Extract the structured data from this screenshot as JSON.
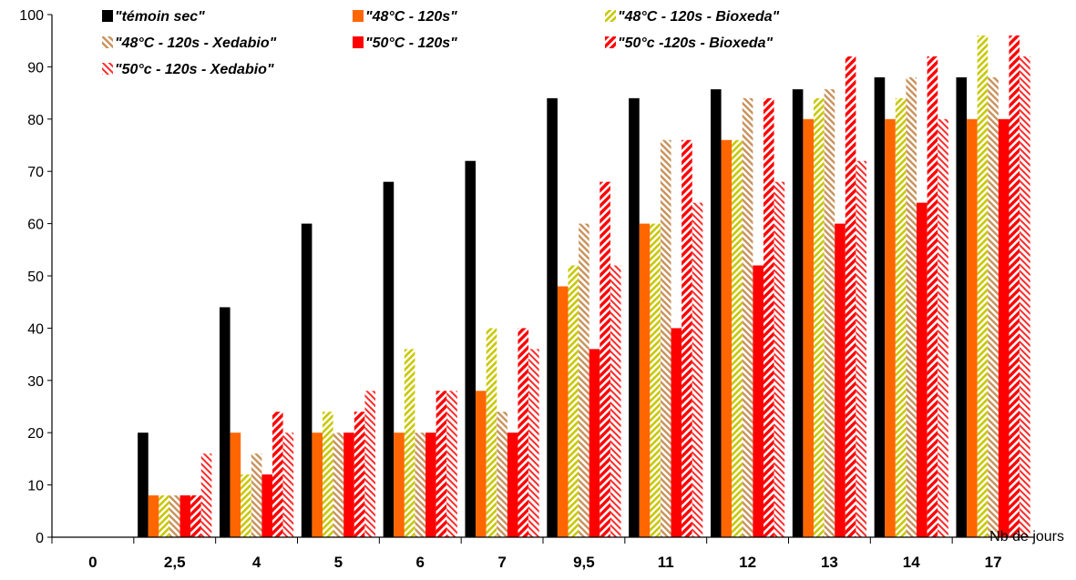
{
  "chart_data": {
    "type": "bar",
    "xlabel": "Nb de jours",
    "ylim": [
      0,
      100
    ],
    "ytick_step": 10,
    "grid": false,
    "legend_position": "top",
    "categories": [
      "0",
      "2,5",
      "4",
      "5",
      "6",
      "7",
      "9,5",
      "11",
      "12",
      "13",
      "14",
      "17"
    ],
    "series": [
      {
        "name": "\"témoin sec\"",
        "color": "#000000",
        "pattern": "solid",
        "values": [
          0,
          20,
          44,
          60,
          68,
          72,
          84,
          84,
          85.7,
          85.7,
          88,
          88
        ]
      },
      {
        "name": "\"48°C - 120s\"",
        "color": "#ff6600",
        "pattern": "solid",
        "values": [
          0,
          8,
          20,
          20,
          20,
          28,
          48,
          60,
          76,
          80,
          80,
          80
        ]
      },
      {
        "name": "\"48°C - 120s - Bioxeda\"",
        "color": "#b5b800",
        "pattern": "hatch-yellow",
        "values": [
          0,
          8,
          12,
          24,
          36,
          40,
          52,
          60,
          76,
          84,
          84,
          96
        ]
      },
      {
        "name": "\"48°C - 120s - Xedabio\"",
        "color": "#c8915a",
        "pattern": "hatch-tan",
        "values": [
          0,
          8,
          16,
          20,
          20,
          24,
          60,
          76,
          84,
          85.7,
          88,
          88
        ]
      },
      {
        "name": "\"50°C - 120s\"",
        "color": "#ff0000",
        "pattern": "solid",
        "values": [
          0,
          8,
          12,
          20,
          20,
          20,
          36,
          40,
          52,
          60,
          64,
          80
        ]
      },
      {
        "name": "\"50°c -120s - Bioxeda\"",
        "color": "#ff0000",
        "pattern": "hatch-red",
        "values": [
          0,
          8,
          24,
          24,
          28,
          40,
          68,
          76,
          84,
          92,
          92,
          96
        ]
      },
      {
        "name": "\"50°c - 120s - Xedabio\"",
        "color": "#ff0000",
        "pattern": "hatch-red-light",
        "values": [
          0,
          16,
          20,
          28,
          28,
          36,
          52,
          64,
          68,
          72,
          80,
          92
        ]
      }
    ]
  }
}
